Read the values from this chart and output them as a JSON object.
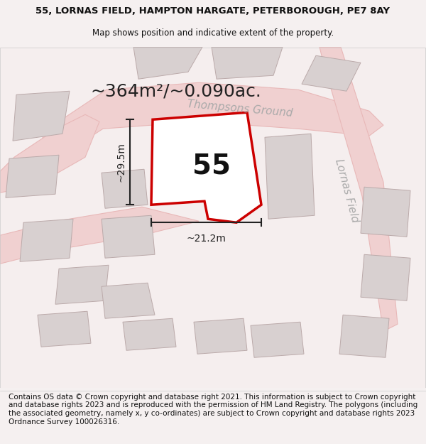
{
  "title_line1": "55, LORNAS FIELD, HAMPTON HARGATE, PETERBOROUGH, PE7 8AY",
  "title_line2": "Map shows position and indicative extent of the property.",
  "area_text": "~364m²/~0.090ac.",
  "property_number": "55",
  "dim_width": "~21.2m",
  "dim_height": "~29.5m",
  "road_label1": "Thompsons Ground",
  "road_label2": "Lornas Field",
  "footer_text": "Contains OS data © Crown copyright and database right 2021. This information is subject to Crown copyright and database rights 2023 and is reproduced with the permission of HM Land Registry. The polygons (including the associated geometry, namely x, y co-ordinates) are subject to Crown copyright and database rights 2023 Ordnance Survey 100026316.",
  "bg_color": "#f5f0f0",
  "map_bg": "#f5eeee",
  "road_color": "#e8b8b8",
  "road_light": "#f0d0d0",
  "building_color": "#d8d0d0",
  "building_edge": "#bbaaaa",
  "property_fill": "#ffffff",
  "property_edge": "#cc0000",
  "dim_color": "#222222",
  "title_fontsize": 9.5,
  "subtitle_fontsize": 8.5,
  "area_fontsize": 18,
  "road_fontsize": 11,
  "number_fontsize": 28,
  "footer_fontsize": 7.5
}
